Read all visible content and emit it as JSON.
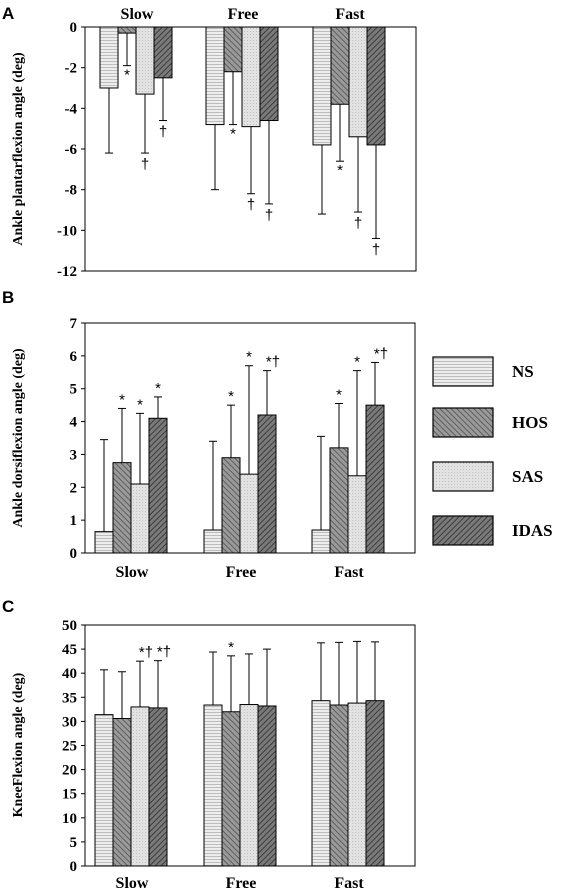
{
  "colors": {
    "NS": "#e6e6e6",
    "HOS": "#8c8c8c",
    "SAS": "#dcdcdc",
    "IDAS": "#6a6a6a"
  },
  "legend": {
    "placement": "right of panel B",
    "items": [
      "NS",
      "HOS",
      "SAS",
      "IDAS"
    ]
  },
  "chart_data": [
    {
      "panel": "A",
      "type": "bar",
      "categories": [
        "Slow",
        "Free",
        "Fast"
      ],
      "category_labels_position": "top",
      "ylabel": "Ankle plantarflexion angle (deg)",
      "ylim": [
        -12,
        0
      ],
      "yticks": [
        0,
        -2,
        -4,
        -6,
        -8,
        -10,
        -12
      ],
      "series": [
        {
          "name": "NS",
          "values": [
            -3.0,
            -4.8,
            -5.8
          ],
          "errors": [
            3.2,
            3.2,
            3.4
          ]
        },
        {
          "name": "HOS",
          "values": [
            -0.3,
            -2.2,
            -3.8
          ],
          "errors": [
            1.6,
            2.6,
            2.8
          ]
        },
        {
          "name": "SAS",
          "values": [
            -3.3,
            -4.9,
            -5.4
          ],
          "errors": [
            2.9,
            3.3,
            3.7
          ]
        },
        {
          "name": "IDAS",
          "values": [
            -2.5,
            -4.6,
            -5.8
          ],
          "errors": [
            2.1,
            4.1,
            4.6
          ]
        }
      ],
      "annotations": [
        {
          "category": "Slow",
          "series": "HOS",
          "text": "*"
        },
        {
          "category": "Slow",
          "series": "SAS",
          "text": "†"
        },
        {
          "category": "Slow",
          "series": "IDAS",
          "text": "†"
        },
        {
          "category": "Free",
          "series": "HOS",
          "text": "*"
        },
        {
          "category": "Free",
          "series": "SAS",
          "text": "†"
        },
        {
          "category": "Free",
          "series": "IDAS",
          "text": "†"
        },
        {
          "category": "Fast",
          "series": "HOS",
          "text": "*"
        },
        {
          "category": "Fast",
          "series": "SAS",
          "text": "†"
        },
        {
          "category": "Fast",
          "series": "IDAS",
          "text": "†"
        }
      ]
    },
    {
      "panel": "B",
      "type": "bar",
      "categories": [
        "Slow",
        "Free",
        "Fast"
      ],
      "ylabel": "Ankle dorsiflexion angle (deg)",
      "ylim": [
        0,
        7
      ],
      "yticks": [
        0,
        1,
        2,
        3,
        4,
        5,
        6,
        7
      ],
      "series": [
        {
          "name": "NS",
          "values": [
            0.65,
            0.7,
            0.7
          ],
          "errors": [
            2.8,
            2.7,
            2.85
          ]
        },
        {
          "name": "HOS",
          "values": [
            2.75,
            2.9,
            3.2
          ],
          "errors": [
            1.65,
            1.6,
            1.35
          ]
        },
        {
          "name": "SAS",
          "values": [
            2.1,
            2.4,
            2.35
          ],
          "errors": [
            2.15,
            3.3,
            3.2
          ]
        },
        {
          "name": "IDAS",
          "values": [
            4.1,
            4.2,
            4.5
          ],
          "errors": [
            0.65,
            1.35,
            1.3
          ]
        }
      ],
      "annotations": [
        {
          "category": "Slow",
          "series": "HOS",
          "text": "*"
        },
        {
          "category": "Slow",
          "series": "SAS",
          "text": "*"
        },
        {
          "category": "Slow",
          "series": "IDAS",
          "text": "*"
        },
        {
          "category": "Free",
          "series": "HOS",
          "text": "*"
        },
        {
          "category": "Free",
          "series": "SAS",
          "text": "*"
        },
        {
          "category": "Free",
          "series": "IDAS",
          "text": "*†"
        },
        {
          "category": "Fast",
          "series": "HOS",
          "text": "*"
        },
        {
          "category": "Fast",
          "series": "SAS",
          "text": "*"
        },
        {
          "category": "Fast",
          "series": "IDAS",
          "text": "*†"
        }
      ]
    },
    {
      "panel": "C",
      "type": "bar",
      "categories": [
        "Slow",
        "Free",
        "Fast"
      ],
      "ylabel": "KneeFlexion angle (deg)",
      "ylim": [
        0,
        50
      ],
      "yticks": [
        0,
        5,
        10,
        15,
        20,
        25,
        30,
        35,
        40,
        45,
        50
      ],
      "series": [
        {
          "name": "NS",
          "values": [
            31.4,
            33.4,
            34.3
          ],
          "errors": [
            9.3,
            11.0,
            12.0
          ]
        },
        {
          "name": "HOS",
          "values": [
            30.6,
            32.0,
            33.4
          ],
          "errors": [
            9.7,
            11.6,
            13.0
          ]
        },
        {
          "name": "SAS",
          "values": [
            33.0,
            33.5,
            33.8
          ],
          "errors": [
            9.5,
            10.5,
            12.8
          ]
        },
        {
          "name": "IDAS",
          "values": [
            32.8,
            33.2,
            34.3
          ],
          "errors": [
            9.8,
            11.8,
            12.2
          ]
        }
      ],
      "annotations": [
        {
          "category": "Slow",
          "series": "SAS",
          "text": "*†"
        },
        {
          "category": "Slow",
          "series": "IDAS",
          "text": "*†"
        },
        {
          "category": "Free",
          "series": "HOS",
          "text": "*"
        }
      ]
    }
  ]
}
